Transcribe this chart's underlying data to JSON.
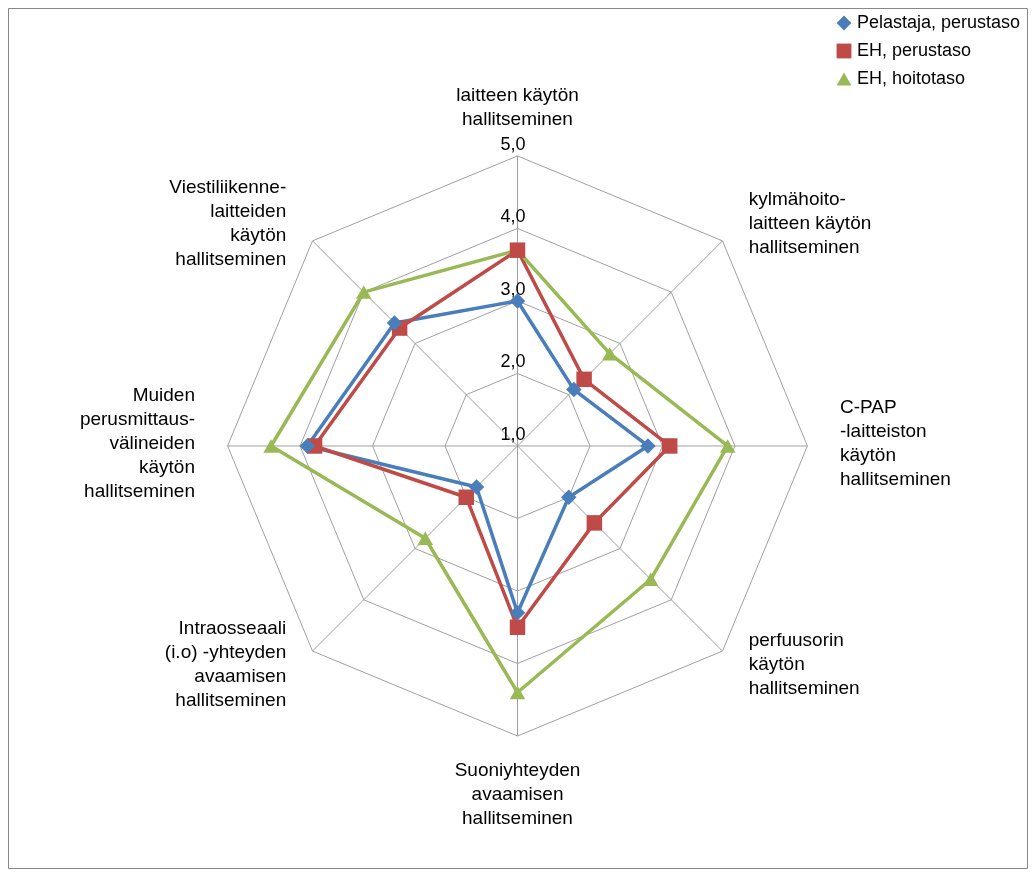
{
  "chart_data": {
    "type": "radar",
    "categories": [
      "laitteen käytön hallitseminen",
      "kylmähoito-laitteen käytön hallitseminen",
      "C-PAP -laitteiston käytön hallitseminen",
      "perfuusorin käytön hallitseminen",
      "Suoniyhteyden avaamisen hallitseminen",
      "Intraosseaali (i.o) -yhteyden avaamisen hallitseminen",
      "Muiden perusmittaus-välineiden käytön hallitseminen",
      "Viestiliikenne-laitteiden käytön hallitseminen"
    ],
    "series": [
      {
        "name": "Pelastaja, perustaso",
        "color": "#4a7ebb",
        "marker": "diamond",
        "values": [
          3.0,
          2.1,
          2.8,
          2.0,
          3.3,
          1.8,
          3.9,
          3.4
        ]
      },
      {
        "name": "EH, perustaso",
        "color": "#be4b48",
        "marker": "square",
        "values": [
          3.7,
          2.3,
          3.1,
          2.5,
          3.5,
          2.0,
          3.8,
          3.3
        ]
      },
      {
        "name": "EH, hoitotaso",
        "color": "#98b954",
        "marker": "triangle",
        "values": [
          3.7,
          2.8,
          3.9,
          3.6,
          4.4,
          2.8,
          4.4,
          4.0
        ]
      }
    ],
    "ylim": [
      1,
      5
    ],
    "yticks": [
      {
        "value": 1,
        "label": "1,0"
      },
      {
        "value": 2,
        "label": "2,0"
      },
      {
        "value": 3,
        "label": "3,0"
      },
      {
        "value": 4,
        "label": "4,0"
      },
      {
        "value": 5,
        "label": "5,0"
      }
    ],
    "grid": true,
    "legend": "top right"
  }
}
